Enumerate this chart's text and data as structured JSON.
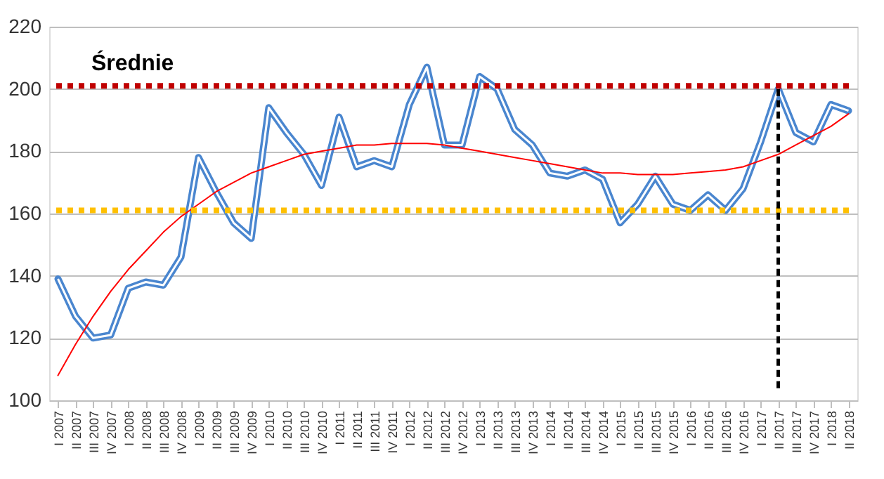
{
  "chart_data": {
    "type": "line",
    "categories": [
      "I 2007",
      "II 2007",
      "III 2007",
      "IV 2007",
      "I 2008",
      "II 2008",
      "III 2008",
      "IV 2008",
      "I 2009",
      "II 2009",
      "III 2009",
      "IV 2009",
      "I 2010",
      "II 2010",
      "III 2010",
      "IV 2010",
      "I 2011",
      "II 2011",
      "III 2011",
      "IV 2011",
      "I 2012",
      "II 2012",
      "III 2012",
      "IV 2012",
      "I 2013",
      "II 2013",
      "III 2013",
      "IV 2013",
      "I 2014",
      "II 2014",
      "III 2014",
      "IV 2014",
      "I 2015",
      "II 2015",
      "III 2015",
      "IV 2015",
      "I 2016",
      "II 2016",
      "III 2016",
      "IV 2016",
      "I 2017",
      "II 2017",
      "III 2017",
      "IV 2017",
      "I 2018",
      "II 2018"
    ],
    "series": [
      {
        "color": "#4a86cf",
        "values": [
          139,
          127,
          120,
          121,
          136,
          138,
          137,
          146,
          178,
          167,
          157,
          152,
          194,
          186,
          179,
          169,
          191,
          175,
          177,
          175,
          195,
          207,
          182,
          182,
          204,
          200,
          187,
          182,
          173,
          172,
          174,
          171,
          157,
          163,
          172,
          163,
          161,
          166,
          161,
          168,
          183,
          200,
          186,
          183,
          195,
          193
        ]
      },
      {
        "color": "#ff0000",
        "values": [
          108,
          118,
          127,
          135,
          142,
          148,
          154,
          159,
          163,
          167,
          170,
          173,
          175,
          177,
          179,
          180,
          181,
          182,
          182,
          182.5,
          182.5,
          182.5,
          182,
          181,
          180,
          179,
          178,
          177,
          176,
          175,
          174,
          173,
          173,
          172.5,
          172.5,
          172.5,
          173,
          173.5,
          174,
          175,
          177,
          179,
          182,
          185,
          188,
          192
        ]
      }
    ],
    "ylim": [
      100,
      220
    ],
    "yticks": [
      100,
      120,
      140,
      160,
      180,
      200,
      220
    ],
    "grid": "y",
    "ref_lines": [
      {
        "axis": "y",
        "value": 201,
        "color": "#c00000",
        "line_style": "dotted"
      },
      {
        "axis": "y",
        "value": 161,
        "color": "#ffc000",
        "line_style": "dotted"
      },
      {
        "axis": "x",
        "value": "II 2017",
        "color": "#000000",
        "line_style": "dashed"
      }
    ],
    "annotations": [
      "Średnie"
    ]
  }
}
